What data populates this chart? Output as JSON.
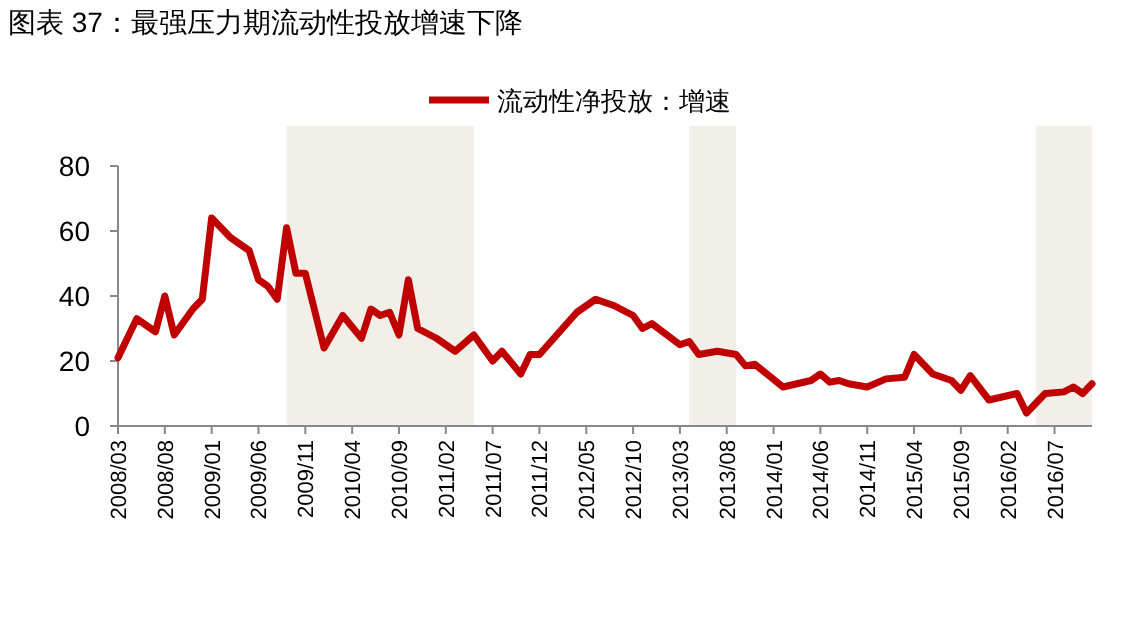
{
  "chart_data": {
    "type": "line",
    "title": "图表 37：最强压力期流动性投放增速下降",
    "legend": "top",
    "line_style": "solid",
    "marker": "none",
    "x": [
      "2008-03",
      "2008-05",
      "2008-07",
      "2008-08",
      "2008-09",
      "2008-11",
      "2008-12",
      "2009-01",
      "2009-03",
      "2009-04",
      "2009-05",
      "2009-06",
      "2009-07",
      "2009-08",
      "2009-09",
      "2009-10",
      "2009-11",
      "2010-01",
      "2010-03",
      "2010-05",
      "2010-06",
      "2010-07",
      "2010-08",
      "2010-09",
      "2010-10",
      "2010-11",
      "2011-01",
      "2011-03",
      "2011-05",
      "2011-07",
      "2011-08",
      "2011-10",
      "2011-11",
      "2011-12",
      "2012-04",
      "2012-06",
      "2012-08",
      "2012-10",
      "2012-11",
      "2012-12",
      "2013-03",
      "2013-04",
      "2013-05",
      "2013-07",
      "2013-09",
      "2013-10",
      "2013-11",
      "2014-02",
      "2014-05",
      "2014-06",
      "2014-07",
      "2014-08",
      "2014-09",
      "2014-11",
      "2015-01",
      "2015-03",
      "2015-04",
      "2015-06",
      "2015-08",
      "2015-09",
      "2015-10",
      "2015-12",
      "2016-03",
      "2016-04",
      "2016-06",
      "2016-08",
      "2016-09",
      "2016-10",
      "2016-11"
    ],
    "series": [
      {
        "name": "流动性净投放：增速",
        "color": "#c00000",
        "values": [
          21,
          33,
          29,
          40,
          28,
          36,
          39,
          64,
          58,
          56,
          54,
          45,
          43,
          39,
          61,
          47,
          47,
          24,
          34,
          27,
          36,
          34,
          35,
          28,
          45,
          30,
          27,
          23,
          28,
          20,
          23,
          16,
          22,
          22,
          35,
          39,
          37,
          34,
          30,
          31.5,
          25,
          26,
          22,
          23,
          22,
          18.5,
          19,
          12,
          14,
          16,
          13.5,
          14,
          13,
          12,
          14.5,
          15,
          22,
          16,
          14,
          11,
          15.5,
          8,
          10,
          4,
          10,
          10.5,
          12,
          10,
          13
        ]
      }
    ],
    "xlim": [
      "2008-03",
      "2016-11"
    ],
    "xticks": [
      {
        "value": "2008-03",
        "label": "2008/03"
      },
      {
        "value": "2008-08",
        "label": "2008/08"
      },
      {
        "value": "2009-01",
        "label": "2009/01"
      },
      {
        "value": "2009-06",
        "label": "2009/06"
      },
      {
        "value": "2009-11",
        "label": "2009/11"
      },
      {
        "value": "2010-04",
        "label": "2010/04"
      },
      {
        "value": "2010-09",
        "label": "2010/09"
      },
      {
        "value": "2011-02",
        "label": "2011/02"
      },
      {
        "value": "2011-07",
        "label": "2011/07"
      },
      {
        "value": "2011-12",
        "label": "2011/12"
      },
      {
        "value": "2012-05",
        "label": "2012/05"
      },
      {
        "value": "2012-10",
        "label": "2012/10"
      },
      {
        "value": "2013-03",
        "label": "2013/03"
      },
      {
        "value": "2013-08",
        "label": "2013/08"
      },
      {
        "value": "2014-01",
        "label": "2014/01"
      },
      {
        "value": "2014-06",
        "label": "2014/06"
      },
      {
        "value": "2014-11",
        "label": "2014/11"
      },
      {
        "value": "2015-04",
        "label": "2015/04"
      },
      {
        "value": "2015-09",
        "label": "2015/09"
      },
      {
        "value": "2016-02",
        "label": "2016/02"
      },
      {
        "value": "2016-07",
        "label": "2016/07"
      }
    ],
    "ylim": [
      0,
      80
    ],
    "yticks": [
      0,
      20,
      40,
      60,
      80
    ],
    "bands": [
      {
        "axis": "x",
        "from": "2009-09",
        "to": "2011-05",
        "color": "#f2efe9"
      },
      {
        "axis": "x",
        "from": "2013-04",
        "to": "2013-09",
        "color": "#f2efe9"
      },
      {
        "axis": "x",
        "from": "2016-05",
        "to": "2016-11",
        "color": "#f2efe9"
      }
    ]
  }
}
